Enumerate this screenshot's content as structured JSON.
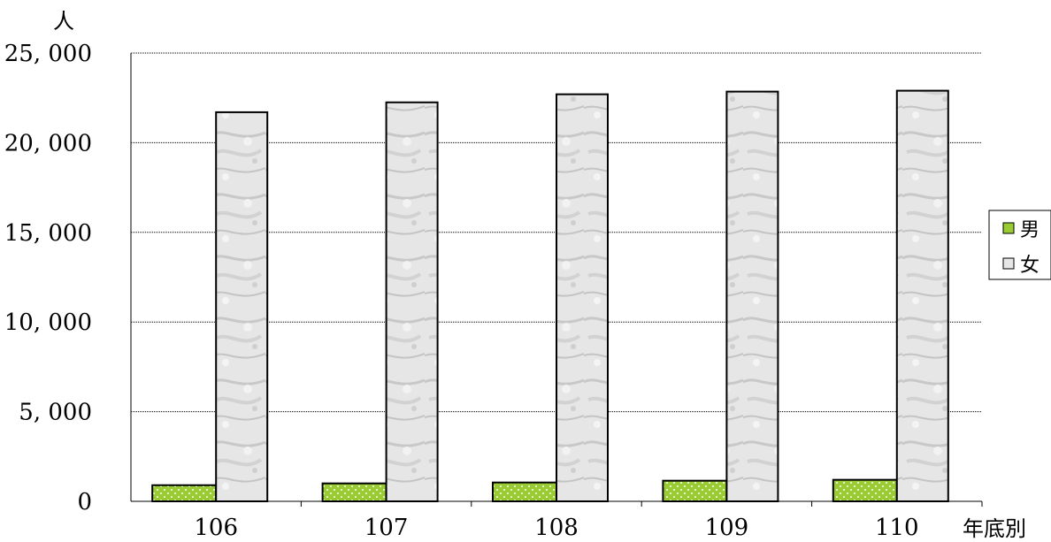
{
  "chart_data": {
    "type": "bar",
    "categories": [
      "106",
      "107",
      "108",
      "109",
      "110"
    ],
    "series": [
      {
        "name": "男",
        "values": [
          900,
          1000,
          1050,
          1150,
          1200
        ],
        "color": "#9acd32",
        "pattern": "dotted"
      },
      {
        "name": "女",
        "values": [
          21700,
          22250,
          22700,
          22850,
          22900
        ],
        "color": "#e4e4e4",
        "pattern": "marble"
      }
    ],
    "title": "",
    "xlabel": "年底別",
    "ylabel": "人",
    "ylim": [
      0,
      25000
    ],
    "yticks": [
      0,
      5000,
      10000,
      15000,
      20000,
      25000
    ],
    "ytick_labels": [
      "0",
      "5, 000",
      "10, 000",
      "15, 000",
      "20, 000",
      "25, 000"
    ],
    "grid": true,
    "legend_position": "right"
  }
}
